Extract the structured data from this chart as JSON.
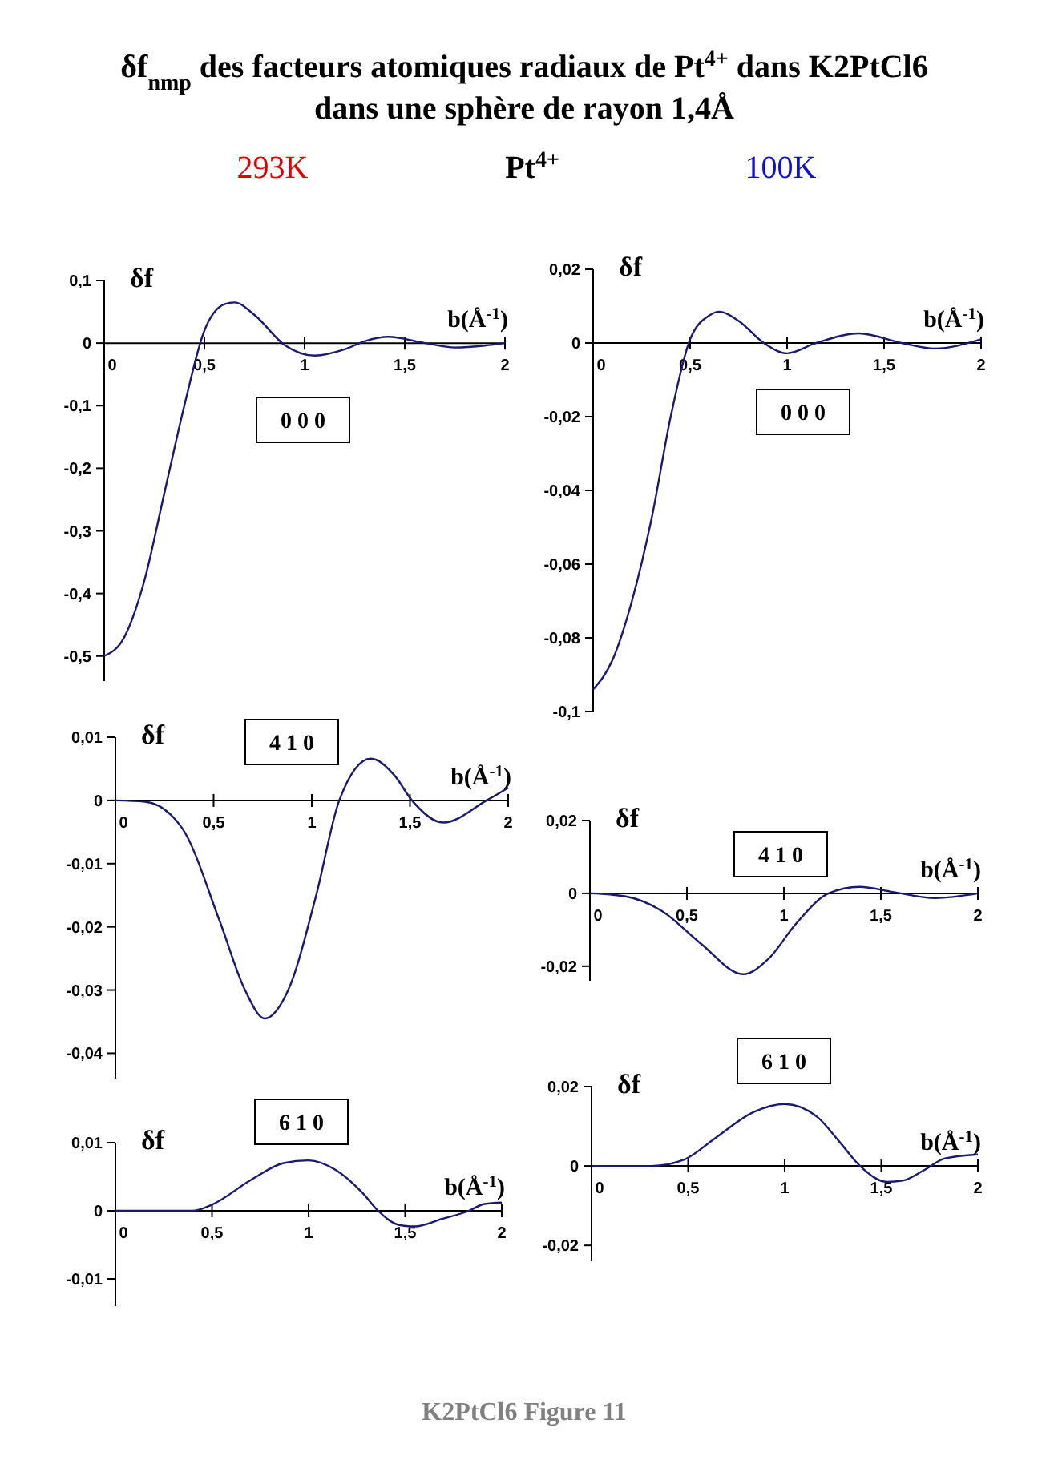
{
  "chart_data": [
    {
      "type": "line",
      "title": "0 0 0",
      "xlabel": "b(Å$^{-1}$)",
      "ylabel": "δf",
      "xlim": [
        0,
        2
      ],
      "ylim": [
        -0.54,
        0.1
      ],
      "xticks": [
        {
          "value": 0,
          "label": "0"
        },
        {
          "value": 0.5,
          "label": "0,5"
        },
        {
          "value": 1,
          "label": "1"
        },
        {
          "value": 1.5,
          "label": "1,5"
        },
        {
          "value": 2,
          "label": "2"
        }
      ],
      "yticks": [
        {
          "value": 0.1,
          "label": "0,1"
        },
        {
          "value": 0,
          "label": "0"
        },
        {
          "value": -0.1,
          "label": "-0,1"
        },
        {
          "value": -0.2,
          "label": "-0,2"
        },
        {
          "value": -0.3,
          "label": "-0,3"
        },
        {
          "value": -0.4,
          "label": "-0,4"
        },
        {
          "value": -0.5,
          "label": "-0,5"
        }
      ],
      "grid": false,
      "annotations": [
        "δf$_{nmp}$ des facteurs atomiques radiaux de Pt$^{4+}$  dans K2PtCl6",
        "dans une sphère de rayon 1,4Å",
        "293K",
        "Pt$^{4+}$",
        "K2PtCl6 Figure 11"
      ],
      "series": [
        {
          "color": "#1a1a6e",
          "x": [
            0,
            0.1,
            0.2,
            0.3,
            0.4,
            0.5,
            0.6,
            0.65,
            0.75,
            0.9,
            1.05,
            1.2,
            1.3,
            1.42,
            1.6,
            1.75,
            1.9,
            2
          ],
          "values": [
            -0.5,
            -0.47,
            -0.38,
            -0.24,
            -0.1,
            0.02,
            0.062,
            0.065,
            0.045,
            -0.003,
            -0.02,
            -0.01,
            0.003,
            0.01,
            0.0,
            -0.007,
            -0.004,
            0
          ]
        }
      ]
    },
    {
      "type": "line",
      "title": "0 0 0",
      "xlabel": "b(Å$^{-1}$)",
      "ylabel": "δf",
      "xlim": [
        0,
        2
      ],
      "ylim": [
        -0.1,
        0.02
      ],
      "xticks": [
        {
          "value": 0,
          "label": "0"
        },
        {
          "value": 0.5,
          "label": "0,5"
        },
        {
          "value": 1,
          "label": "1"
        },
        {
          "value": 1.5,
          "label": "1,5"
        },
        {
          "value": 2,
          "label": "2"
        }
      ],
      "yticks": [
        {
          "value": 0.02,
          "label": "0,02"
        },
        {
          "value": 0,
          "label": "0"
        },
        {
          "value": -0.02,
          "label": "-0,02"
        },
        {
          "value": -0.04,
          "label": "-0,04"
        },
        {
          "value": -0.06,
          "label": "-0,06"
        },
        {
          "value": -0.08,
          "label": "-0,08"
        },
        {
          "value": -0.1,
          "label": "-0,1"
        }
      ],
      "grid": false,
      "annotations": [
        "100K"
      ],
      "series": [
        {
          "color": "#1a1a6e",
          "x": [
            0,
            0.1,
            0.2,
            0.3,
            0.4,
            0.5,
            0.6,
            0.65,
            0.75,
            0.88,
            1.0,
            1.15,
            1.37,
            1.59,
            1.76,
            2
          ],
          "values": [
            -0.094,
            -0.086,
            -0.07,
            -0.048,
            -0.02,
            0.001,
            0.0075,
            0.0085,
            0.006,
            0,
            -0.0028,
            0,
            0.0026,
            0,
            -0.0015,
            0.001
          ]
        }
      ]
    },
    {
      "type": "line",
      "title": "4 1 0",
      "xlabel": "b(Å$^{-1}$)",
      "ylabel": "δf",
      "xlim": [
        0,
        2
      ],
      "ylim": [
        -0.044,
        0.01
      ],
      "xticks": [
        {
          "value": 0,
          "label": "0"
        },
        {
          "value": 0.5,
          "label": "0,5"
        },
        {
          "value": 1,
          "label": "1"
        },
        {
          "value": 1.5,
          "label": "1,5"
        },
        {
          "value": 2,
          "label": "2"
        }
      ],
      "yticks": [
        {
          "value": 0.01,
          "label": "0,01"
        },
        {
          "value": 0,
          "label": "0"
        },
        {
          "value": -0.01,
          "label": "-0,01"
        },
        {
          "value": -0.02,
          "label": "-0,02"
        },
        {
          "value": -0.03,
          "label": "-0,03"
        },
        {
          "value": -0.04,
          "label": "-0,04"
        }
      ],
      "grid": false,
      "series": [
        {
          "color": "#1a1a6e",
          "x": [
            0,
            0.15,
            0.34,
            0.53,
            0.66,
            0.76,
            0.88,
            1.02,
            1.14,
            1.3,
            1.42,
            1.51,
            1.67,
            1.89,
            2
          ],
          "values": [
            0,
            -0.0002,
            -0.0044,
            -0.019,
            -0.03,
            -0.0345,
            -0.03,
            -0.0153,
            0,
            0.0066,
            0.004,
            0,
            -0.0035,
            0,
            0.002
          ]
        }
      ]
    },
    {
      "type": "line",
      "title": "4 1 0",
      "xlabel": "b(Å$^{-1}$)",
      "ylabel": "δf",
      "xlim": [
        0,
        2
      ],
      "ylim": [
        -0.024,
        0.02
      ],
      "xticks": [
        {
          "value": 0,
          "label": "0"
        },
        {
          "value": 0.5,
          "label": "0,5"
        },
        {
          "value": 1,
          "label": "1"
        },
        {
          "value": 1.5,
          "label": "1,5"
        },
        {
          "value": 2,
          "label": "2"
        }
      ],
      "yticks": [
        {
          "value": 0.02,
          "label": "0,02"
        },
        {
          "value": 0,
          "label": "0"
        },
        {
          "value": -0.02,
          "label": "-0,02"
        }
      ],
      "grid": false,
      "series": [
        {
          "color": "#1a1a6e",
          "x": [
            0,
            0.18,
            0.37,
            0.57,
            0.79,
            0.92,
            1.06,
            1.23,
            1.39,
            1.56,
            1.78,
            2
          ],
          "values": [
            0,
            -0.0008,
            -0.0048,
            -0.0137,
            -0.0222,
            -0.018,
            -0.0085,
            0,
            0.0018,
            0.0004,
            -0.0013,
            0
          ]
        }
      ]
    },
    {
      "type": "line",
      "title": "6 1 0",
      "xlabel": "b(Å$^{-1}$)",
      "ylabel": "δf",
      "xlim": [
        0,
        2
      ],
      "ylim": [
        -0.014,
        0.01
      ],
      "xticks": [
        {
          "value": 0,
          "label": "0"
        },
        {
          "value": 0.5,
          "label": "0,5"
        },
        {
          "value": 1,
          "label": "1"
        },
        {
          "value": 1.5,
          "label": "1,5"
        },
        {
          "value": 2,
          "label": "2"
        }
      ],
      "yticks": [
        {
          "value": 0.01,
          "label": "0,01"
        },
        {
          "value": 0,
          "label": "0"
        },
        {
          "value": -0.01,
          "label": "-0,01"
        }
      ],
      "grid": false,
      "series": [
        {
          "color": "#1a1a6e",
          "x": [
            0,
            0.4,
            0.5,
            0.7,
            0.87,
            1.0,
            1.14,
            1.28,
            1.36,
            1.47,
            1.55,
            1.69,
            1.83,
            1.91,
            2
          ],
          "values": [
            0,
            0,
            0.0009,
            0.0045,
            0.007,
            0.0074,
            0.006,
            0.0026,
            0,
            -0.0021,
            -0.0023,
            -0.0012,
            0,
            0.001,
            0.0012
          ]
        }
      ]
    },
    {
      "type": "line",
      "title": "6 1 0",
      "xlabel": "b(Å$^{-1}$)",
      "ylabel": "δf",
      "xlim": [
        0,
        2
      ],
      "ylim": [
        -0.024,
        0.02
      ],
      "xticks": [
        {
          "value": 0,
          "label": "0"
        },
        {
          "value": 0.5,
          "label": "0,5"
        },
        {
          "value": 1,
          "label": "1"
        },
        {
          "value": 1.5,
          "label": "1,5"
        },
        {
          "value": 2,
          "label": "2"
        }
      ],
      "yticks": [
        {
          "value": 0.02,
          "label": "0,02"
        },
        {
          "value": 0,
          "label": "0"
        },
        {
          "value": -0.02,
          "label": "-0,02"
        }
      ],
      "grid": false,
      "series": [
        {
          "color": "#1a1a6e",
          "x": [
            0,
            0.31,
            0.48,
            0.64,
            0.84,
            1.0,
            1.17,
            1.28,
            1.39,
            1.53,
            1.61,
            1.72,
            1.83,
            2
          ],
          "values": [
            0,
            0,
            0.0016,
            0.007,
            0.0136,
            0.0156,
            0.0123,
            0.0063,
            0,
            -0.004,
            -0.0037,
            -0.0011,
            0.0019,
            0.0029
          ]
        }
      ]
    }
  ]
}
